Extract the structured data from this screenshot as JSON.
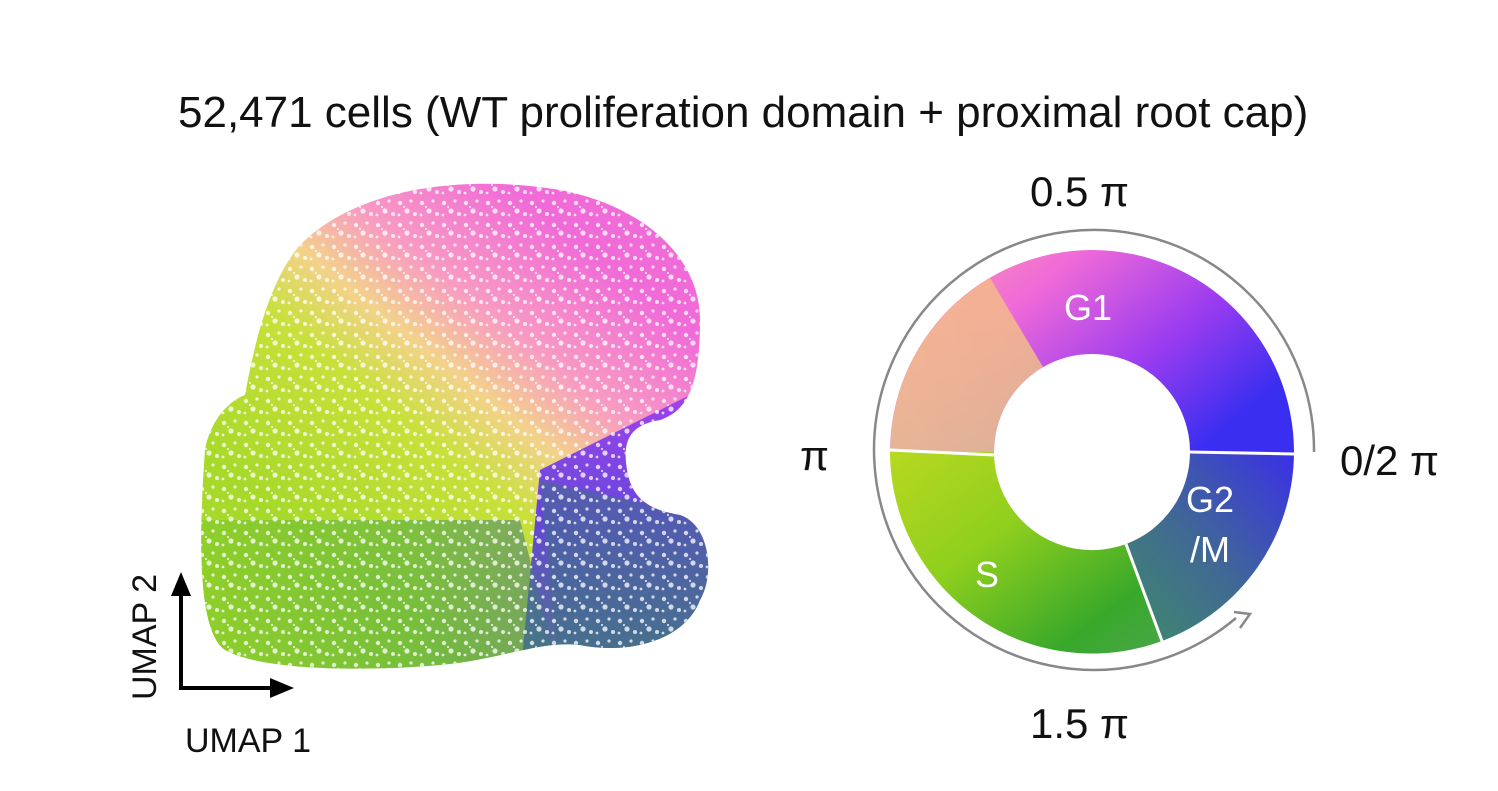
{
  "title": "52,471 cells (WT proliferation domain + proximal root cap)",
  "umap": {
    "x_label": "UMAP 1",
    "y_label": "UMAP 2"
  },
  "phase_wheel": {
    "angle_labels": {
      "top": "0.5 π",
      "left": "π",
      "right": "0/2 π",
      "bottom": "1.5 π"
    },
    "phases": [
      {
        "name": "G1"
      },
      {
        "name": "S"
      },
      {
        "name": "G2\n/M",
        "line1": "G2",
        "line2": "/M"
      }
    ]
  },
  "colors": {
    "g1_magenta": "#f06ad8",
    "violet": "#9b3cf0",
    "g2m_blue": "#3a2ef0",
    "teal": "#3f7f8a",
    "s_green": "#3fbf2a",
    "s_lime": "#c6e21a",
    "peach": "#f6b98a"
  }
}
